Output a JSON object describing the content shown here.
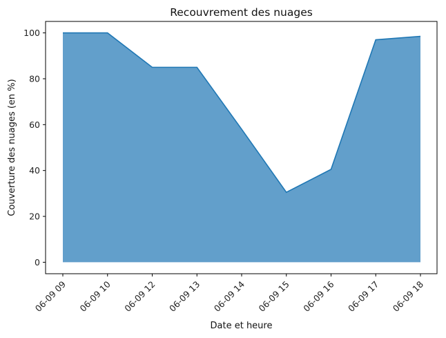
{
  "chart_data": {
    "type": "area",
    "title": "Recouvrement des nuages",
    "xlabel": "Date et heure",
    "ylabel": "Couverture des nuages (en %)",
    "categories": [
      "06-09 09",
      "06-09 10",
      "06-09 12",
      "06-09 13",
      "06-09 14",
      "06-09 15",
      "06-09 16",
      "06-09 17",
      "06-09 18"
    ],
    "values": [
      100,
      100,
      85,
      85,
      58,
      30.5,
      40.5,
      97,
      98.5
    ],
    "yticks": [
      0,
      20,
      40,
      60,
      80,
      100
    ],
    "ylim": [
      -5,
      105
    ],
    "grid": false,
    "legend": "none",
    "colors": {
      "fill": "#629fcb",
      "line": "#1f77b4",
      "axis": "#000000"
    }
  }
}
